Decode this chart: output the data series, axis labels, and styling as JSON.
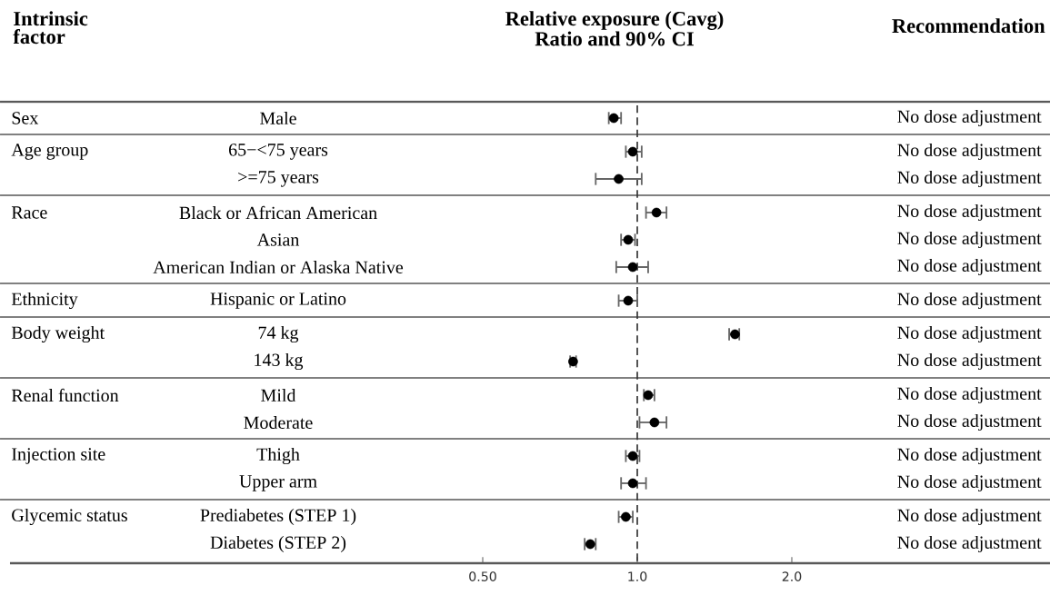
{
  "chart_data": {
    "type": "scatter",
    "orientation": "horizontal",
    "xlabel": "Relative exposure (Cavg) Ratio and 90% CI",
    "ylabel": "Intrinsic factor",
    "categories": [
      "Male",
      "65−<75 years",
      ">=75 years",
      "Black or African American",
      "Asian",
      "American Indian or Alaska Native",
      "Hispanic or Latino",
      "74 kg",
      "143 kg",
      "Mild",
      "Moderate",
      "Thigh",
      "Upper arm",
      "Prediabetes (STEP 1)",
      "Diabetes (STEP 2)"
    ],
    "values": [
      0.9,
      0.98,
      0.92,
      1.09,
      0.96,
      0.98,
      0.96,
      1.55,
      0.75,
      1.05,
      1.08,
      0.98,
      0.98,
      0.95,
      0.81
    ],
    "errors": [
      [
        0.88,
        0.93
      ],
      [
        0.95,
        1.02
      ],
      [
        0.83,
        1.02
      ],
      [
        1.04,
        1.14
      ],
      [
        0.93,
        0.99
      ],
      [
        0.91,
        1.05
      ],
      [
        0.92,
        1.0
      ],
      [
        1.51,
        1.58
      ],
      [
        0.74,
        0.76
      ],
      [
        1.03,
        1.08
      ],
      [
        1.01,
        1.14
      ],
      [
        0.95,
        1.01
      ],
      [
        0.93,
        1.04
      ],
      [
        0.92,
        0.98
      ],
      [
        0.79,
        0.83
      ]
    ],
    "color": "#000000",
    "log": "x",
    "xlim": [
      0.06,
      6.4
    ],
    "xticks": [
      {
        "value": 0.5,
        "label": "0.50"
      },
      {
        "value": 1,
        "label": "1.0"
      },
      {
        "value": 2,
        "label": "2.0"
      }
    ],
    "ref_lines": [
      {
        "axis": "x",
        "value": 1,
        "line_style": "dashed"
      }
    ],
    "annotations": [
      "Recommendation",
      "Sex",
      "Age group",
      "Race",
      "Ethnicity",
      "Body weight",
      "Renal function",
      "Injection site",
      "Glycemic status",
      "No dose adjustment",
      "No dose adjustment",
      "No dose adjustment",
      "No dose adjustment",
      "No dose adjustment",
      "No dose adjustment",
      "No dose adjustment",
      "No dose adjustment",
      "No dose adjustment",
      "No dose adjustment",
      "No dose adjustment",
      "No dose adjustment",
      "No dose adjustment",
      "No dose adjustment",
      "No dose adjustment"
    ]
  }
}
